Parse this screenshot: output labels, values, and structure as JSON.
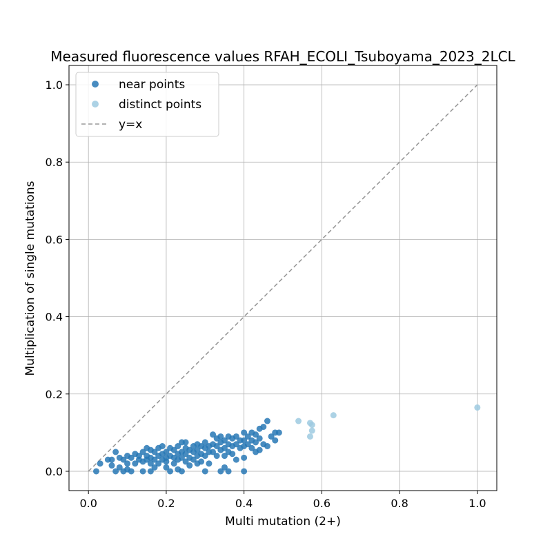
{
  "chart_data": {
    "type": "scatter",
    "title": "Measured fluorescence values RFAH_ECOLI_Tsuboyama_2023_2LCL",
    "xlabel": "Multi mutation (2+)",
    "ylabel": "Multiplication of single mutations",
    "xlim": [
      -0.05,
      1.05
    ],
    "ylim": [
      -0.05,
      1.05
    ],
    "xticks": [
      "0.0",
      "0.2",
      "0.4",
      "0.6",
      "0.8",
      "1.0"
    ],
    "yticks": [
      "0.0",
      "0.2",
      "0.4",
      "0.6",
      "0.8",
      "1.0"
    ],
    "grid": true,
    "legend_position": "top-left",
    "series": [
      {
        "name": "near points",
        "color": "#2878b5",
        "points": [
          [
            0.02,
            0.0
          ],
          [
            0.03,
            0.02
          ],
          [
            0.05,
            0.03
          ],
          [
            0.06,
            0.03
          ],
          [
            0.06,
            0.015
          ],
          [
            0.07,
            0.0
          ],
          [
            0.07,
            0.05
          ],
          [
            0.08,
            0.035
          ],
          [
            0.08,
            0.01
          ],
          [
            0.09,
            0.03
          ],
          [
            0.09,
            0.0
          ],
          [
            0.1,
            0.04
          ],
          [
            0.1,
            0.02
          ],
          [
            0.1,
            0.005
          ],
          [
            0.11,
            0.035
          ],
          [
            0.11,
            0.0
          ],
          [
            0.12,
            0.045
          ],
          [
            0.12,
            0.02
          ],
          [
            0.13,
            0.04
          ],
          [
            0.13,
            0.03
          ],
          [
            0.14,
            0.05
          ],
          [
            0.14,
            0.025
          ],
          [
            0.14,
            0.0
          ],
          [
            0.15,
            0.06
          ],
          [
            0.15,
            0.04
          ],
          [
            0.15,
            0.03
          ],
          [
            0.16,
            0.055
          ],
          [
            0.16,
            0.035
          ],
          [
            0.16,
            0.02
          ],
          [
            0.16,
            0.0
          ],
          [
            0.17,
            0.05
          ],
          [
            0.17,
            0.03
          ],
          [
            0.17,
            0.01
          ],
          [
            0.18,
            0.06
          ],
          [
            0.18,
            0.04
          ],
          [
            0.18,
            0.02
          ],
          [
            0.19,
            0.045
          ],
          [
            0.19,
            0.03
          ],
          [
            0.19,
            0.065
          ],
          [
            0.2,
            0.05
          ],
          [
            0.2,
            0.035
          ],
          [
            0.2,
            0.025
          ],
          [
            0.2,
            0.01
          ],
          [
            0.21,
            0.06
          ],
          [
            0.21,
            0.04
          ],
          [
            0.21,
            0.0
          ],
          [
            0.22,
            0.055
          ],
          [
            0.22,
            0.035
          ],
          [
            0.22,
            0.02
          ],
          [
            0.23,
            0.065
          ],
          [
            0.23,
            0.045
          ],
          [
            0.23,
            0.03
          ],
          [
            0.23,
            0.005
          ],
          [
            0.24,
            0.075
          ],
          [
            0.24,
            0.05
          ],
          [
            0.24,
            0.035
          ],
          [
            0.24,
            0.0
          ],
          [
            0.25,
            0.06
          ],
          [
            0.25,
            0.045
          ],
          [
            0.25,
            0.025
          ],
          [
            0.25,
            0.075
          ],
          [
            0.26,
            0.055
          ],
          [
            0.26,
            0.035
          ],
          [
            0.26,
            0.015
          ],
          [
            0.27,
            0.065
          ],
          [
            0.27,
            0.05
          ],
          [
            0.27,
            0.03
          ],
          [
            0.28,
            0.07
          ],
          [
            0.28,
            0.055
          ],
          [
            0.28,
            0.04
          ],
          [
            0.28,
            0.02
          ],
          [
            0.29,
            0.065
          ],
          [
            0.29,
            0.045
          ],
          [
            0.29,
            0.025
          ],
          [
            0.3,
            0.075
          ],
          [
            0.3,
            0.06
          ],
          [
            0.3,
            0.04
          ],
          [
            0.3,
            0.0
          ],
          [
            0.31,
            0.065
          ],
          [
            0.31,
            0.05
          ],
          [
            0.31,
            0.02
          ],
          [
            0.32,
            0.095
          ],
          [
            0.32,
            0.07
          ],
          [
            0.32,
            0.05
          ],
          [
            0.33,
            0.085
          ],
          [
            0.33,
            0.065
          ],
          [
            0.33,
            0.04
          ],
          [
            0.34,
            0.09
          ],
          [
            0.34,
            0.075
          ],
          [
            0.34,
            0.055
          ],
          [
            0.34,
            0.0
          ],
          [
            0.35,
            0.08
          ],
          [
            0.35,
            0.06
          ],
          [
            0.35,
            0.04
          ],
          [
            0.35,
            0.01
          ],
          [
            0.36,
            0.09
          ],
          [
            0.36,
            0.07
          ],
          [
            0.36,
            0.05
          ],
          [
            0.36,
            0.0
          ],
          [
            0.37,
            0.085
          ],
          [
            0.37,
            0.065
          ],
          [
            0.37,
            0.045
          ],
          [
            0.38,
            0.09
          ],
          [
            0.38,
            0.07
          ],
          [
            0.38,
            0.03
          ],
          [
            0.39,
            0.08
          ],
          [
            0.39,
            0.06
          ],
          [
            0.4,
            0.1
          ],
          [
            0.4,
            0.08
          ],
          [
            0.4,
            0.065
          ],
          [
            0.4,
            0.035
          ],
          [
            0.4,
            0.0
          ],
          [
            0.41,
            0.09
          ],
          [
            0.41,
            0.07
          ],
          [
            0.42,
            0.1
          ],
          [
            0.42,
            0.08
          ],
          [
            0.42,
            0.06
          ],
          [
            0.43,
            0.095
          ],
          [
            0.43,
            0.075
          ],
          [
            0.43,
            0.05
          ],
          [
            0.44,
            0.11
          ],
          [
            0.44,
            0.085
          ],
          [
            0.44,
            0.055
          ],
          [
            0.45,
            0.115
          ],
          [
            0.45,
            0.07
          ],
          [
            0.46,
            0.13
          ],
          [
            0.46,
            0.065
          ],
          [
            0.47,
            0.09
          ],
          [
            0.48,
            0.1
          ],
          [
            0.48,
            0.08
          ],
          [
            0.49,
            0.1
          ]
        ]
      },
      {
        "name": "distinct points",
        "color": "#9ecae1",
        "points": [
          [
            0.54,
            0.13
          ],
          [
            0.57,
            0.125
          ],
          [
            0.575,
            0.12
          ],
          [
            0.575,
            0.105
          ],
          [
            0.57,
            0.09
          ],
          [
            0.63,
            0.145
          ],
          [
            1.0,
            0.165
          ]
        ]
      },
      {
        "name": "y=x",
        "color": "#999999",
        "line": [
          [
            0.0,
            0.0
          ],
          [
            1.0,
            1.0
          ]
        ]
      }
    ]
  }
}
